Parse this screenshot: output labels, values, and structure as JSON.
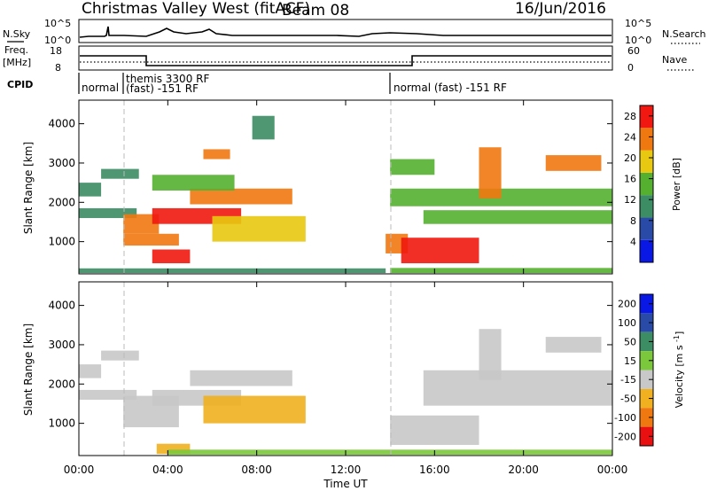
{
  "header": {
    "title": "Christmas Valley West (fitACF)",
    "beam": "Beam 08",
    "date": "16/Jun/2016"
  },
  "top_panels": {
    "nsky_label": "N.Sky",
    "nsky_ticks": [
      "10^5",
      "10^0"
    ],
    "nsearch_label": "N.Search",
    "nsearch_ticks": [
      "10^5",
      "10^0"
    ],
    "freq_label_1": "Freq.",
    "freq_label_2": "[MHz]",
    "freq_ticks": [
      "18",
      "8"
    ],
    "nave_label": "Nave",
    "nave_ticks": [
      "60",
      "0"
    ],
    "cpid_label": "CPID",
    "cpid_segments": [
      {
        "start": 0.0,
        "line1": "normal",
        "line2": ""
      },
      {
        "start": 2.0,
        "line1": "themis 3300 RF",
        "line2": "(fast) -151 RF"
      },
      {
        "start": 14.0,
        "line1": "normal (fast) -151 RF",
        "line2": ""
      }
    ]
  },
  "chart_data": [
    {
      "type": "heatmap",
      "title": "",
      "ylabel": "Slant Range [km]",
      "xlabel": "",
      "ylim": [
        180,
        4600
      ],
      "yticks": [
        "1000",
        "2000",
        "3000",
        "4000"
      ],
      "ytick_values": [
        1000,
        2000,
        3000,
        4000
      ],
      "colorbar": {
        "label": "Power [dB]",
        "ticks": [
          "4",
          "8",
          "12",
          "16",
          "20",
          "24",
          "28"
        ],
        "tick_values": [
          4,
          8,
          12,
          16,
          20,
          24,
          28
        ],
        "range": [
          0,
          30
        ],
        "colors": [
          "#0a18e6",
          "#2a4aa8",
          "#3c8c64",
          "#55b030",
          "#e8c810",
          "#f07810",
          "#f01810"
        ]
      },
      "regions": [
        {
          "t0": 0.0,
          "t1": 1.0,
          "r0": 2150,
          "r1": 2500,
          "v": 9
        },
        {
          "t0": 0.0,
          "t1": 2.6,
          "r0": 1600,
          "r1": 1850,
          "v": 10
        },
        {
          "t0": 1.0,
          "t1": 2.7,
          "r0": 2600,
          "r1": 2850,
          "v": 9
        },
        {
          "t0": 2.0,
          "t1": 3.6,
          "r0": 1200,
          "r1": 1700,
          "v": 20
        },
        {
          "t0": 2.0,
          "t1": 4.5,
          "r0": 900,
          "r1": 1200,
          "v": 21
        },
        {
          "t0": 3.3,
          "t1": 5.0,
          "r0": 450,
          "r1": 800,
          "v": 24
        },
        {
          "t0": 3.3,
          "t1": 7.3,
          "r0": 1450,
          "r1": 1850,
          "v": 26
        },
        {
          "t0": 5.0,
          "t1": 9.6,
          "r0": 1950,
          "r1": 2350,
          "v": 22
        },
        {
          "t0": 3.3,
          "t1": 7.0,
          "r0": 2300,
          "r1": 2700,
          "v": 12
        },
        {
          "t0": 5.6,
          "t1": 6.8,
          "r0": 3100,
          "r1": 3350,
          "v": 22
        },
        {
          "t0": 6.0,
          "t1": 10.2,
          "r0": 1000,
          "r1": 1650,
          "v": 18
        },
        {
          "t0": 7.8,
          "t1": 8.8,
          "r0": 3600,
          "r1": 4200,
          "v": 8
        },
        {
          "t0": 0.0,
          "t1": 13.8,
          "r0": 200,
          "r1": 320,
          "v": 8
        },
        {
          "t0": 13.8,
          "t1": 14.8,
          "r0": 700,
          "r1": 1200,
          "v": 22
        },
        {
          "t0": 14.5,
          "t1": 18.0,
          "r0": 450,
          "r1": 1100,
          "v": 24
        },
        {
          "t0": 14.0,
          "t1": 16.0,
          "r0": 2700,
          "r1": 3100,
          "v": 12
        },
        {
          "t0": 15.5,
          "t1": 24.0,
          "r0": 1450,
          "r1": 1800,
          "v": 15
        },
        {
          "t0": 14.0,
          "t1": 24.0,
          "r0": 1900,
          "r1": 2350,
          "v": 14
        },
        {
          "t0": 18.0,
          "t1": 19.0,
          "r0": 2100,
          "r1": 3400,
          "v": 23
        },
        {
          "t0": 21.0,
          "t1": 23.5,
          "r0": 2800,
          "r1": 3200,
          "v": 21
        },
        {
          "t0": 14.0,
          "t1": 24.0,
          "r0": 200,
          "r1": 330,
          "v": 14
        }
      ]
    },
    {
      "type": "heatmap",
      "title": "",
      "ylabel": "Slant Range [km]",
      "xlabel": "Time UT",
      "ylim": [
        180,
        4600
      ],
      "xlim": [
        0,
        24
      ],
      "xticks": [
        "00:00",
        "04:00",
        "08:00",
        "12:00",
        "16:00",
        "20:00",
        "00:00"
      ],
      "xtick_values": [
        0,
        4,
        8,
        12,
        16,
        20,
        24
      ],
      "yticks": [
        "1000",
        "2000",
        "3000",
        "4000"
      ],
      "ytick_values": [
        1000,
        2000,
        3000,
        4000
      ],
      "colorbar": {
        "label": "Velocity [m s^-1]",
        "ticks": [
          "200",
          "100",
          "50",
          "15",
          "-15",
          "-50",
          "-100",
          "-200"
        ],
        "tick_values": [
          200,
          100,
          50,
          15,
          -15,
          -50,
          -100,
          -200
        ],
        "colors": [
          "#0a18e6",
          "#2a4aa8",
          "#3c8c64",
          "#7cc83c",
          "#c8c8c8",
          "#f0b020",
          "#f07810",
          "#e81010"
        ]
      },
      "regions": [
        {
          "t0": 0.0,
          "t1": 1.0,
          "r0": 2150,
          "r1": 2500,
          "v": 0
        },
        {
          "t0": 0.0,
          "t1": 2.6,
          "r0": 1600,
          "r1": 1850,
          "v": 0
        },
        {
          "t0": 1.0,
          "t1": 2.7,
          "r0": 2600,
          "r1": 2850,
          "v": 0
        },
        {
          "t0": 2.0,
          "t1": 4.5,
          "r0": 900,
          "r1": 1700,
          "v": 0
        },
        {
          "t0": 3.3,
          "t1": 7.3,
          "r0": 1450,
          "r1": 1850,
          "v": 0
        },
        {
          "t0": 5.0,
          "t1": 9.6,
          "r0": 1950,
          "r1": 2350,
          "v": 0
        },
        {
          "t0": 5.6,
          "t1": 10.2,
          "r0": 1000,
          "r1": 1700,
          "v": -60
        },
        {
          "t0": 3.5,
          "t1": 5.0,
          "r0": 220,
          "r1": 480,
          "v": -60
        },
        {
          "t0": 14.0,
          "t1": 18.0,
          "r0": 450,
          "r1": 1200,
          "v": 0
        },
        {
          "t0": 15.5,
          "t1": 24.0,
          "r0": 1450,
          "r1": 2350,
          "v": 0
        },
        {
          "t0": 18.0,
          "t1": 19.0,
          "r0": 2100,
          "r1": 3400,
          "v": 0
        },
        {
          "t0": 21.0,
          "t1": 23.5,
          "r0": 2800,
          "r1": 3200,
          "v": 0
        },
        {
          "t0": 4.0,
          "t1": 24.0,
          "r0": 200,
          "r1": 330,
          "v": 30
        }
      ]
    }
  ]
}
